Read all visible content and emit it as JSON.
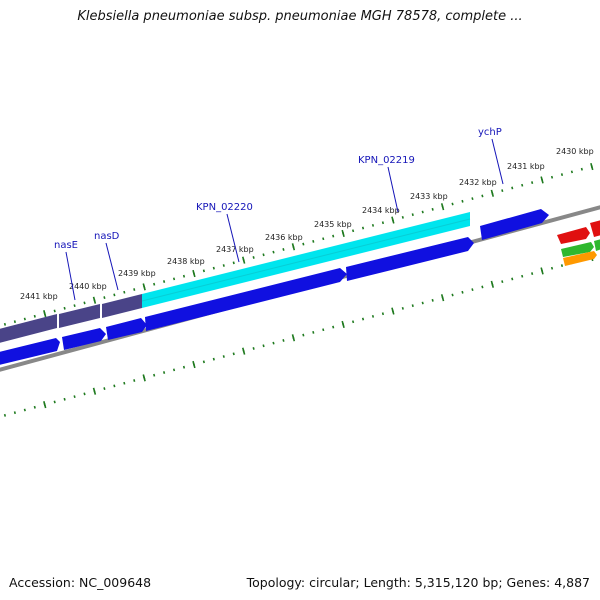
{
  "title": "Klebsiella pneumoniae subsp. pneumoniae MGH 78578, complete ...",
  "footer": {
    "accession": "Accession: NC_009648",
    "summary": "Topology: circular; Length: 5,315,120 bp; Genes: 4,887"
  },
  "ticks": [
    "2441 kbp",
    "2440 kbp",
    "2439 kbp",
    "2438 kbp",
    "2437 kbp",
    "2436 kbp",
    "2435 kbp",
    "2434 kbp",
    "2433 kbp",
    "2432 kbp",
    "2431 kbp",
    "2430 kbp"
  ],
  "genes": [
    "nasE",
    "nasD",
    "KPN_02220",
    "KPN_02219",
    "ychP"
  ],
  "colors": {
    "forward_gene": "#1010e0",
    "highlight": "#00e5ee",
    "slate": "#4a4488",
    "backbone": "#888888",
    "tick": "#1f7a1f",
    "red": "#e01010",
    "green": "#2eb82e",
    "orange": "#ff9900"
  }
}
